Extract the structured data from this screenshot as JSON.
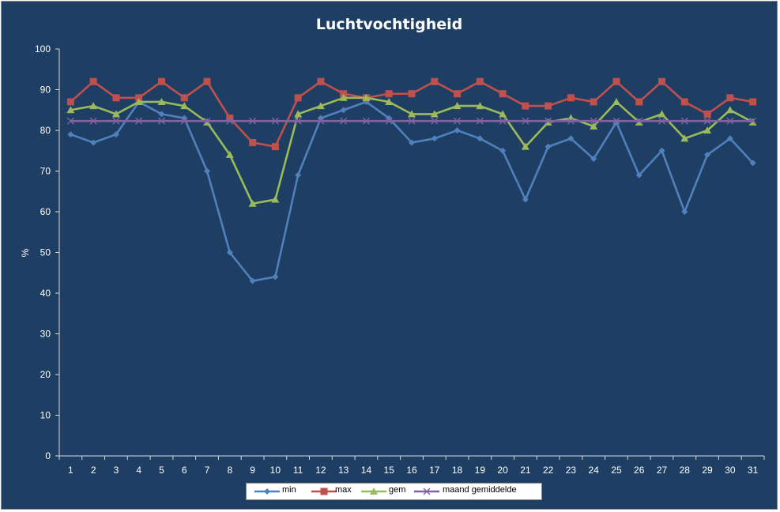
{
  "chart_data": {
    "type": "line",
    "title": "Luchtvochtigheid",
    "xlabel": "",
    "ylabel": "%",
    "ylim": [
      0,
      100
    ],
    "yticks": [
      0,
      10,
      20,
      30,
      40,
      50,
      60,
      70,
      80,
      90,
      100
    ],
    "categories": [
      "1",
      "2",
      "3",
      "4",
      "5",
      "6",
      "7",
      "8",
      "9",
      "10",
      "11",
      "12",
      "13",
      "14",
      "15",
      "16",
      "17",
      "18",
      "19",
      "20",
      "21",
      "22",
      "23",
      "24",
      "25",
      "26",
      "27",
      "28",
      "29",
      "30",
      "31"
    ],
    "grid": false,
    "legend_position": "bottom",
    "series": [
      {
        "name": "min",
        "color": "#4f81bd",
        "marker": "diamond",
        "values": [
          79,
          77,
          79,
          87,
          84,
          83,
          70,
          50,
          43,
          44,
          69,
          83,
          85,
          87,
          83,
          77,
          78,
          80,
          78,
          75,
          63,
          76,
          78,
          73,
          82,
          69,
          75,
          60,
          74,
          78,
          72
        ]
      },
      {
        "name": "max",
        "color": "#c0504d",
        "marker": "square",
        "values": [
          87,
          92,
          88,
          88,
          92,
          88,
          92,
          83,
          77,
          76,
          88,
          92,
          89,
          88,
          89,
          89,
          92,
          89,
          92,
          89,
          86,
          86,
          88,
          87,
          92,
          87,
          92,
          87,
          84,
          88,
          87
        ]
      },
      {
        "name": "gem",
        "color": "#9bbb59",
        "marker": "triangle",
        "values": [
          85,
          86,
          84,
          87,
          87,
          86,
          82,
          74,
          62,
          63,
          84,
          86,
          88,
          88,
          87,
          84,
          84,
          86,
          86,
          84,
          76,
          82,
          83,
          81,
          87,
          82,
          84,
          78,
          80,
          85,
          82
        ]
      },
      {
        "name": "maand gemiddelde",
        "color": "#8064a2",
        "marker": "x",
        "values": [
          82.3,
          82.3,
          82.3,
          82.3,
          82.3,
          82.3,
          82.3,
          82.3,
          82.3,
          82.3,
          82.3,
          82.3,
          82.3,
          82.3,
          82.3,
          82.3,
          82.3,
          82.3,
          82.3,
          82.3,
          82.3,
          82.3,
          82.3,
          82.3,
          82.3,
          82.3,
          82.3,
          82.3,
          82.3,
          82.3,
          82.3
        ]
      }
    ]
  }
}
